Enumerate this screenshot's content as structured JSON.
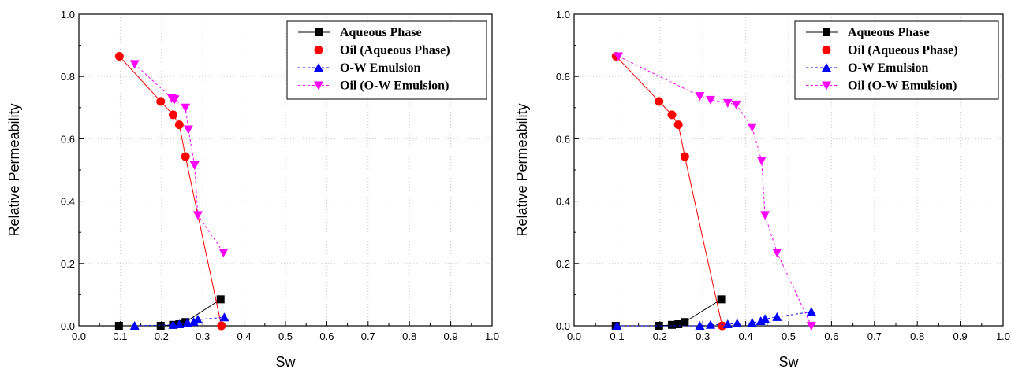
{
  "chart_data": [
    {
      "type": "line",
      "title": "",
      "xlabel": "Sw",
      "ylabel": "Relative Permeability",
      "xlim": [
        0.0,
        1.0
      ],
      "ylim": [
        0.0,
        1.0
      ],
      "xticks": [
        "0.0",
        "0.1",
        "0.2",
        "0.3",
        "0.4",
        "0.5",
        "0.6",
        "0.7",
        "0.8",
        "0.9",
        "1.0"
      ],
      "yticks": [
        "0.0",
        "0.2",
        "0.4",
        "0.6",
        "0.8",
        "1.0"
      ],
      "grid": "dotted",
      "legend_position": "top-right",
      "series": [
        {
          "name": "Aqueous Phase",
          "color": "#000000",
          "marker": "square",
          "dashed": false,
          "x": [
            0.097,
            0.198,
            0.228,
            0.243,
            0.258,
            0.343
          ],
          "y": [
            0.0,
            0.0,
            0.003,
            0.005,
            0.012,
            0.085
          ]
        },
        {
          "name": "Oil (Aqueous Phase)",
          "color": "#ff0000",
          "marker": "circle",
          "dashed": false,
          "x": [
            0.098,
            0.198,
            0.228,
            0.243,
            0.258,
            0.345
          ],
          "y": [
            0.865,
            0.72,
            0.677,
            0.645,
            0.543,
            0.0
          ]
        },
        {
          "name": "O-W Emulsion",
          "color": "#0000ff",
          "marker": "triangle-up",
          "dashed": true,
          "x": [
            0.135,
            0.228,
            0.243,
            0.263,
            0.278,
            0.288,
            0.352
          ],
          "y": [
            0.0,
            0.003,
            0.005,
            0.01,
            0.013,
            0.02,
            0.027
          ]
        },
        {
          "name": "Oil (O-W Emulsion)",
          "color": "#ff00ff",
          "marker": "triangle-down",
          "dashed": true,
          "x": [
            0.135,
            0.225,
            0.232,
            0.258,
            0.265,
            0.28,
            0.288,
            0.35
          ],
          "y": [
            0.84,
            0.73,
            0.727,
            0.7,
            0.63,
            0.515,
            0.355,
            0.235
          ]
        }
      ]
    },
    {
      "type": "line",
      "title": "",
      "xlabel": "Sw",
      "ylabel": "Relative Permeability",
      "xlim": [
        0.0,
        1.0
      ],
      "ylim": [
        0.0,
        1.0
      ],
      "xticks": [
        "0.0",
        "0.1",
        "0.2",
        "0.3",
        "0.4",
        "0.5",
        "0.6",
        "0.7",
        "0.8",
        "0.9",
        "1.0"
      ],
      "yticks": [
        "0.0",
        "0.2",
        "0.4",
        "0.6",
        "0.8",
        "1.0"
      ],
      "grid": "dotted",
      "legend_position": "top-right",
      "series": [
        {
          "name": "Aqueous Phase",
          "color": "#000000",
          "marker": "square",
          "dashed": false,
          "x": [
            0.097,
            0.198,
            0.228,
            0.243,
            0.258,
            0.343
          ],
          "y": [
            0.0,
            0.0,
            0.003,
            0.005,
            0.012,
            0.085
          ]
        },
        {
          "name": "Oil (Aqueous Phase)",
          "color": "#ff0000",
          "marker": "circle",
          "dashed": false,
          "x": [
            0.098,
            0.198,
            0.228,
            0.243,
            0.258,
            0.345
          ],
          "y": [
            0.865,
            0.72,
            0.677,
            0.645,
            0.543,
            0.0
          ]
        },
        {
          "name": "O-W Emulsion",
          "color": "#0000ff",
          "marker": "triangle-up",
          "dashed": true,
          "x": [
            0.1,
            0.293,
            0.318,
            0.358,
            0.38,
            0.415,
            0.435,
            0.445,
            0.473,
            0.553
          ],
          "y": [
            0.0,
            0.0,
            0.003,
            0.005,
            0.008,
            0.01,
            0.015,
            0.022,
            0.028,
            0.045
          ]
        },
        {
          "name": "Oil (O-W Emulsion)",
          "color": "#ff00ff",
          "marker": "triangle-down",
          "dashed": true,
          "x": [
            0.103,
            0.293,
            0.318,
            0.358,
            0.378,
            0.415,
            0.437,
            0.445,
            0.473,
            0.553
          ],
          "y": [
            0.865,
            0.737,
            0.725,
            0.715,
            0.71,
            0.637,
            0.53,
            0.355,
            0.235,
            0.0
          ]
        }
      ]
    }
  ]
}
